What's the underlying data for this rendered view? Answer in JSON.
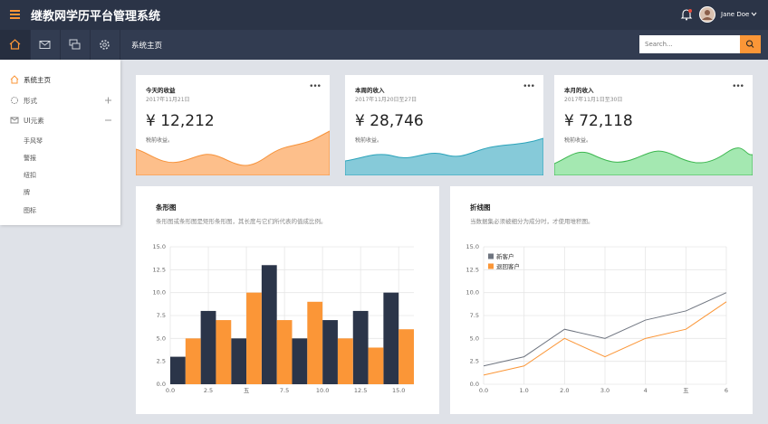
{
  "header": {
    "title": "继教网学历平台管理系统",
    "user_name": "Jane Doe"
  },
  "nav": {
    "tab_title": "系统主页",
    "search_placeholder": "Search..."
  },
  "sidebar": {
    "items": [
      "系统主页",
      "形式",
      "UI元素"
    ],
    "submenu": [
      "手风琴",
      "警报",
      "纽扣",
      "牌",
      "图标"
    ]
  },
  "cards": [
    {
      "title": "今天的收益",
      "date": "2017年11月21日",
      "amount": "¥ 12,212",
      "note": "税前收益。"
    },
    {
      "title": "本周的收入",
      "date": "2017年11月20日至27日",
      "amount": "¥ 28,746",
      "note": "税前收益。"
    },
    {
      "title": "本月的收入",
      "date": "2017年11月1日至30日",
      "amount": "¥ 72,118",
      "note": "税前收益。"
    }
  ],
  "chart_data": [
    {
      "type": "bar",
      "title": "条形图",
      "subtitle": "条形图或条形图是矩形条形图，其长度与它们所代表的值成比例。",
      "xlim": [
        0,
        16
      ],
      "ylim": [
        0,
        15
      ],
      "grid": true,
      "xticks": [
        {
          "value": 0,
          "label": "0.0"
        },
        2.5,
        {
          "value": 5,
          "label": "五"
        },
        7.5,
        {
          "value": 10,
          "label": "10.0"
        },
        12.5,
        {
          "value": 15,
          "label": "15.0"
        }
      ],
      "yticks": [
        {
          "value": 0,
          "label": "0.0"
        },
        2.5,
        {
          "value": 5,
          "label": "5.0"
        },
        7.5,
        {
          "value": 10,
          "label": "10.0"
        },
        12.5,
        {
          "value": 15,
          "label": "15.0"
        }
      ],
      "series": [
        {
          "color": "#2b3549",
          "x": [
            0,
            2,
            4,
            6,
            8,
            10,
            12,
            14
          ],
          "values": [
            3,
            8,
            5,
            13,
            5,
            7,
            8,
            10
          ]
        },
        {
          "color": "#fb9637",
          "x": [
            1,
            3,
            5,
            7,
            9,
            11,
            13,
            15
          ],
          "values": [
            5,
            7,
            10,
            7,
            9,
            5,
            4,
            6
          ]
        }
      ]
    },
    {
      "type": "line",
      "title": "折线图",
      "subtitle": "当数据集必须被细分为成分时，才使用堆积图。",
      "xlim": [
        0,
        6
      ],
      "ylim": [
        0,
        15
      ],
      "grid": true,
      "legend": "top-left",
      "xticks": [
        {
          "value": 0,
          "label": "0.0"
        },
        {
          "value": 1,
          "label": "1.0"
        },
        {
          "value": 2,
          "label": "2.0"
        },
        {
          "value": 3,
          "label": "3.0"
        },
        4,
        {
          "value": 5,
          "label": "五"
        },
        6
      ],
      "yticks": [
        {
          "value": 0,
          "label": "0.0"
        },
        2.5,
        {
          "value": 5,
          "label": "5.0"
        },
        7.5,
        {
          "value": 10,
          "label": "10.0"
        },
        12.5,
        {
          "value": 15,
          "label": "15.0"
        }
      ],
      "x": [
        0,
        1,
        2,
        3,
        4,
        5,
        6
      ],
      "series": [
        {
          "name": "新客户",
          "color": "#6f7580",
          "values": [
            2,
            3,
            6,
            5,
            7,
            8,
            10
          ]
        },
        {
          "name": "退回客户",
          "color": "#fb9637",
          "values": [
            1,
            2,
            5,
            3,
            5,
            6,
            9
          ]
        }
      ]
    }
  ]
}
